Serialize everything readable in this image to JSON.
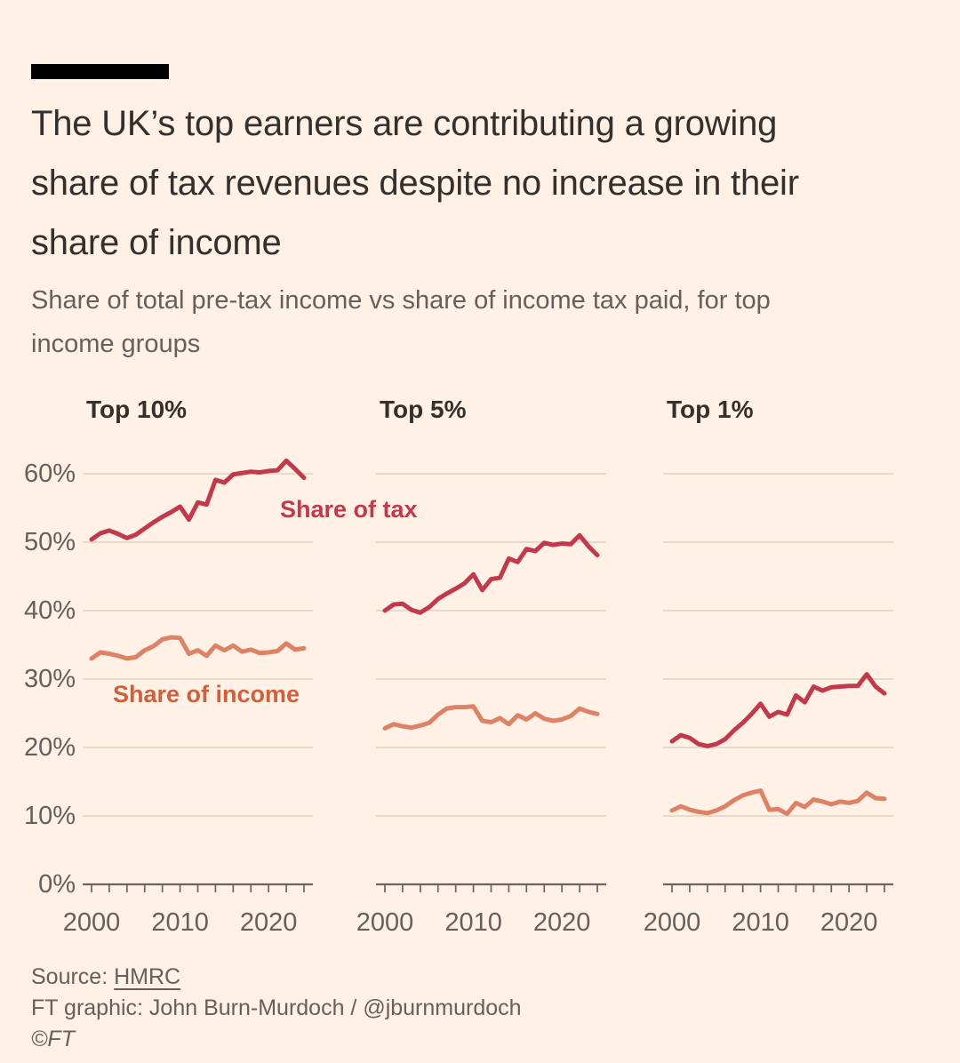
{
  "header": {
    "title": "The UK’s top earners are contributing a growing share of tax revenues despite no increase in their share of income",
    "title_lines": [
      "The UK’s top earners are contributing a growing",
      "share of tax revenues despite no increase in their",
      "share of income"
    ],
    "subtitle": "Share of total pre-tax income vs share of income tax paid, for top income groups",
    "subtitle_lines": [
      "Share of total pre-tax income vs share of income tax paid, for top",
      "income groups"
    ]
  },
  "footer": {
    "source_prefix": "Source: ",
    "source_link": "HMRC",
    "credit": "FT graphic: John Burn-Murdoch / @jburnmurdoch",
    "copyright": "©FT"
  },
  "chart_data": {
    "type": "line",
    "small_multiples": true,
    "years": [
      2000,
      2001,
      2002,
      2003,
      2004,
      2005,
      2006,
      2007,
      2008,
      2009,
      2010,
      2011,
      2012,
      2013,
      2014,
      2015,
      2016,
      2017,
      2018,
      2019,
      2020,
      2021,
      2022,
      2023,
      2024
    ],
    "x_tick_labels": [
      "2000",
      "2010",
      "2020"
    ],
    "x_label_years": [
      2000,
      2010,
      2020
    ],
    "ytick_values": [
      0,
      10,
      20,
      30,
      40,
      50,
      60
    ],
    "ytick_labels": [
      "0%",
      "10%",
      "20%",
      "30%",
      "40%",
      "50%",
      "60%"
    ],
    "ylim": [
      0,
      65
    ],
    "grid": "horizontal",
    "annotations": [
      {
        "text": "Share of tax",
        "series": "tax"
      },
      {
        "text": "Share of income",
        "series": "income"
      }
    ],
    "colors": {
      "background": "#fff1e5",
      "tax_line": "#c2394b",
      "tax_label": "#c2394b",
      "income_line": "#de8266",
      "income_label": "#d0603c",
      "gridline": "#e4d6c7",
      "axis": "#6b6460",
      "tick_text": "#66605c"
    },
    "panels": [
      {
        "title": "Top 10%",
        "share_of_tax": [
          50.4,
          51.3,
          51.7,
          51.2,
          50.6,
          51.1,
          52.0,
          52.9,
          53.7,
          54.4,
          55.2,
          53.3,
          55.8,
          55.5,
          59.1,
          58.7,
          59.9,
          60.1,
          60.3,
          60.2,
          60.4,
          60.5,
          61.9,
          60.7,
          59.4
        ],
        "share_of_income": [
          33.0,
          33.9,
          33.7,
          33.4,
          33.0,
          33.2,
          34.2,
          34.8,
          35.8,
          36.1,
          36.0,
          33.7,
          34.2,
          33.4,
          34.9,
          34.2,
          34.9,
          34.0,
          34.3,
          33.8,
          33.9,
          34.1,
          35.2,
          34.3,
          34.5
        ]
      },
      {
        "title": "Top 5%",
        "share_of_tax": [
          40.0,
          40.9,
          41.0,
          40.1,
          39.7,
          40.5,
          41.7,
          42.5,
          43.2,
          44.0,
          45.3,
          43.0,
          44.6,
          44.8,
          47.6,
          47.1,
          49.0,
          48.7,
          49.9,
          49.6,
          49.8,
          49.7,
          51.0,
          49.4,
          48.1
        ],
        "share_of_income": [
          22.8,
          23.4,
          23.1,
          22.9,
          23.2,
          23.6,
          24.8,
          25.7,
          25.9,
          25.9,
          26.0,
          23.9,
          23.7,
          24.3,
          23.4,
          24.7,
          24.1,
          25.0,
          24.2,
          23.9,
          24.1,
          24.6,
          25.7,
          25.2,
          24.9
        ]
      },
      {
        "title": "Top 1%",
        "share_of_tax": [
          20.9,
          21.8,
          21.4,
          20.5,
          20.2,
          20.5,
          21.2,
          22.5,
          23.6,
          24.9,
          26.4,
          24.5,
          25.2,
          24.8,
          27.6,
          26.6,
          28.9,
          28.3,
          28.8,
          28.9,
          29.0,
          29.0,
          30.7,
          28.9,
          27.9
        ],
        "share_of_income": [
          10.8,
          11.4,
          10.9,
          10.6,
          10.4,
          10.8,
          11.4,
          12.3,
          13.0,
          13.4,
          13.7,
          10.9,
          11.0,
          10.3,
          11.9,
          11.3,
          12.4,
          12.1,
          11.7,
          12.1,
          11.9,
          12.2,
          13.4,
          12.6,
          12.5
        ]
      }
    ]
  }
}
